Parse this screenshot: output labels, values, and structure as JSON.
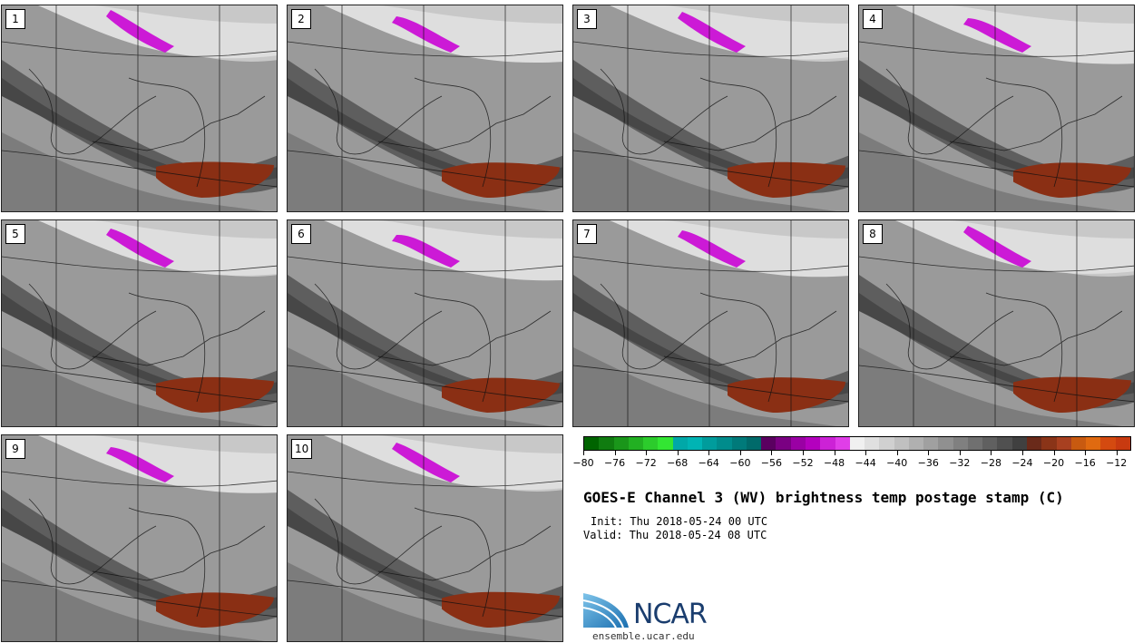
{
  "title": "GOES-E Channel 3 (WV) brightness temp postage stamp (C)",
  "init": "Init: Thu 2018-05-24 00 UTC",
  "valid": "Valid: Thu 2018-05-24 08 UTC",
  "panels": [
    {
      "label": "1"
    },
    {
      "label": "2"
    },
    {
      "label": "3"
    },
    {
      "label": "4"
    },
    {
      "label": "5"
    },
    {
      "label": "6"
    },
    {
      "label": "7"
    },
    {
      "label": "8"
    },
    {
      "label": "9"
    },
    {
      "label": "10"
    }
  ],
  "colorbar": {
    "ticks": [
      "−80",
      "−76",
      "−72",
      "−68",
      "−64",
      "−60",
      "−56",
      "−52",
      "−48",
      "−44",
      "−40",
      "−36",
      "−32",
      "−28",
      "−24",
      "−20",
      "−16",
      "−12"
    ],
    "colors": [
      "#006400",
      "#107c10",
      "#1a961a",
      "#22b022",
      "#2ccc2c",
      "#33e633",
      "#00a8a8",
      "#00b4b4",
      "#009c9c",
      "#008c8c",
      "#007a7a",
      "#006a6a",
      "#5a0060",
      "#7a0082",
      "#9a00a4",
      "#b400be",
      "#cc22d6",
      "#e03ee8",
      "#f0f0f0",
      "#e0e0e0",
      "#d0d0d0",
      "#c0c0c0",
      "#b0b0b0",
      "#a0a0a0",
      "#909090",
      "#808080",
      "#707070",
      "#606060",
      "#505050",
      "#404040",
      "#6a2a1a",
      "#8a3418",
      "#a84020",
      "#c85a10",
      "#e06a10",
      "#d44a10",
      "#c83a10"
    ]
  },
  "logo": {
    "text": "NCAR",
    "site": "ensemble.ucar.edu"
  }
}
